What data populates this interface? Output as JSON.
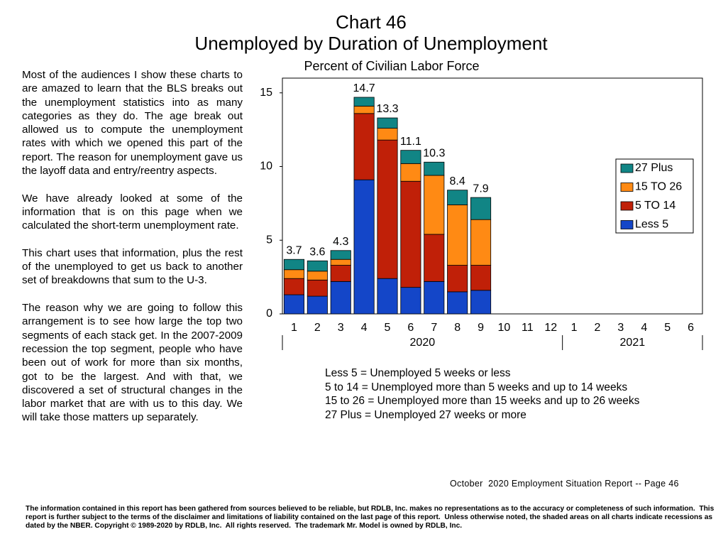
{
  "header": {
    "title": "Chart 46",
    "subtitle": "Unemployed by Duration of Unemployment"
  },
  "commentary": [
    "Most of the audiences I show these charts to are amazed to learn that the BLS breaks out the unemployment statistics into as many categories as they do.  The age break out allowed us to compute the unemployment rates with which we opened this part of the report.  The reason for unemployment gave us the layoff data and entry/reentry aspects.",
    "We have already looked at some of the information that is on this page when we calculated the short-term unemployment rate.",
    "This chart uses that information, plus the rest of the unemployed to get us back to another set of breakdowns that sum to the U-3.",
    "The reason why we are going to follow this arrangement is to see how large the top two segments of each stack get.  In the 2007-2009 recession the top segment, people who have been out of work for more than six months, got to be the largest.  And with that, we discovered a set of structural changes in the labor market that are with us to this day.  We will take those matters up separately."
  ],
  "chart_data": {
    "type": "stacked_bar",
    "title": "Percent of Civilian Labor Force",
    "categories": [
      "1",
      "2",
      "3",
      "4",
      "5",
      "6",
      "7",
      "8",
      "9",
      "10",
      "11",
      "12",
      "1",
      "2",
      "3",
      "4",
      "5",
      "6"
    ],
    "x_groups": [
      "2020",
      "2021"
    ],
    "series": [
      {
        "name": "Less 5",
        "color": "#1446c8",
        "values": [
          1.3,
          1.2,
          2.2,
          9.1,
          2.4,
          1.8,
          2.2,
          1.5,
          1.6,
          null,
          null,
          null,
          null,
          null,
          null,
          null,
          null,
          null
        ]
      },
      {
        "name": "5 TO 14",
        "color": "#c02008",
        "values": [
          1.1,
          1.1,
          1.1,
          4.5,
          9.4,
          7.2,
          3.2,
          1.8,
          1.7,
          null,
          null,
          null,
          null,
          null,
          null,
          null,
          null,
          null
        ]
      },
      {
        "name": "15 TO 26",
        "color": "#ff8a14",
        "values": [
          0.6,
          0.6,
          0.4,
          0.5,
          0.8,
          1.2,
          4.0,
          4.1,
          3.1,
          null,
          null,
          null,
          null,
          null,
          null,
          null,
          null,
          null
        ]
      },
      {
        "name": "27 Plus",
        "color": "#118585",
        "values": [
          0.7,
          0.7,
          0.6,
          0.6,
          0.7,
          0.9,
          0.9,
          1.0,
          1.5,
          null,
          null,
          null,
          null,
          null,
          null,
          null,
          null,
          null
        ]
      }
    ],
    "totals": [
      3.7,
      3.6,
      4.3,
      14.7,
      13.3,
      11.1,
      10.3,
      8.4,
      7.9,
      null,
      null,
      null,
      null,
      null,
      null,
      null,
      null,
      null
    ],
    "ylim": [
      0,
      16
    ],
    "yticks": [
      0,
      5,
      10,
      15
    ],
    "grid": false,
    "legend_position": "right"
  },
  "definitions": [
    "Less 5 = Unemployed 5 weeks or less",
    "5 to 14 = Unemployed more than 5 weeks and up to 14 weeks",
    "15 to 26 = Unemployed more than 15 weeks and up to 26 weeks",
    "27 Plus = Unemployed 27 weeks or more"
  ],
  "page_footer": "October  2020 Employment Situation Report -- Page 46",
  "disclaimer": "The information contained in this report has been gathered from sources believed to be reliable, but RDLB, Inc. makes no representations as to the accuracy or completeness of such information.  This report is further subject to the terms of the disclaimer and limitations of liability contained on the last page of this report.  Unless otherwise noted, the shaded areas on all charts indicate recessions as dated by the NBER. Copyright © 1989-2020 by RDLB, Inc.  All rights reserved.  The trademark Mr. Model is owned by RDLB, Inc."
}
